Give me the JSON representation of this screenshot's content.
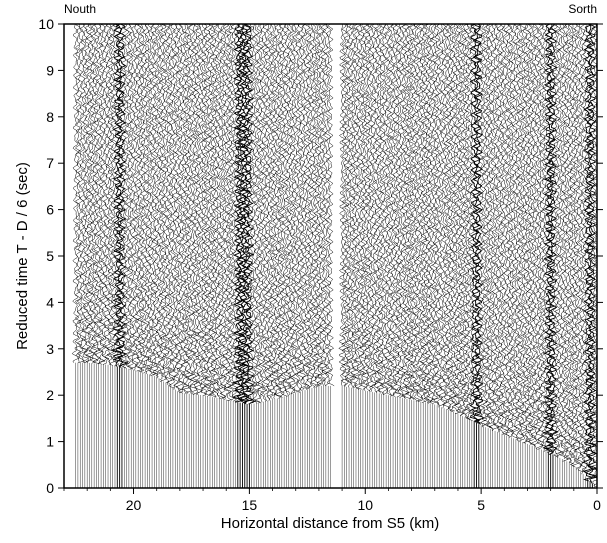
{
  "chart_data": {
    "type": "seismic-record-section",
    "xlabel": "Horizontal distance from S5 (km)",
    "ylabel": "Reduced time T - D / 6 (sec)",
    "xlim": [
      23,
      0
    ],
    "ylim": [
      0,
      10
    ],
    "x_reversed": true,
    "xticks": [
      20,
      15,
      10,
      5,
      0
    ],
    "yticks": [
      0,
      1,
      2,
      3,
      4,
      5,
      6,
      7,
      8,
      9,
      10
    ],
    "end_labels": {
      "left": "Nouth",
      "right": "Sorth"
    },
    "trace_spacing_km": 0.1,
    "trace_coverage_km": [
      [
        0,
        11
      ],
      [
        11.5,
        22.5
      ]
    ],
    "first_arrival_pick_sec": [
      {
        "x": 0,
        "t": 0.0
      },
      {
        "x": 1,
        "t": 0.5
      },
      {
        "x": 2,
        "t": 0.75
      },
      {
        "x": 3,
        "t": 0.95
      },
      {
        "x": 4,
        "t": 1.15
      },
      {
        "x": 5,
        "t": 1.35
      },
      {
        "x": 6,
        "t": 1.6
      },
      {
        "x": 7,
        "t": 1.8
      },
      {
        "x": 8,
        "t": 1.9
      },
      {
        "x": 9,
        "t": 2.0
      },
      {
        "x": 10,
        "t": 2.1
      },
      {
        "x": 11,
        "t": 2.2
      },
      {
        "x": 12,
        "t": 2.2
      },
      {
        "x": 13,
        "t": 2.05
      },
      {
        "x": 14,
        "t": 1.9
      },
      {
        "x": 15,
        "t": 1.8
      },
      {
        "x": 16,
        "t": 1.9
      },
      {
        "x": 17,
        "t": 2.0
      },
      {
        "x": 18,
        "t": 2.05
      },
      {
        "x": 19,
        "t": 2.4
      },
      {
        "x": 20,
        "t": 2.55
      },
      {
        "x": 21,
        "t": 2.65
      },
      {
        "x": 22,
        "t": 2.7
      },
      {
        "x": 22.5,
        "t": 2.7
      }
    ],
    "dark_trace_clusters_km": [
      0.3,
      2.0,
      5.2,
      15.1,
      15.4,
      20.6
    ],
    "grid": false
  }
}
